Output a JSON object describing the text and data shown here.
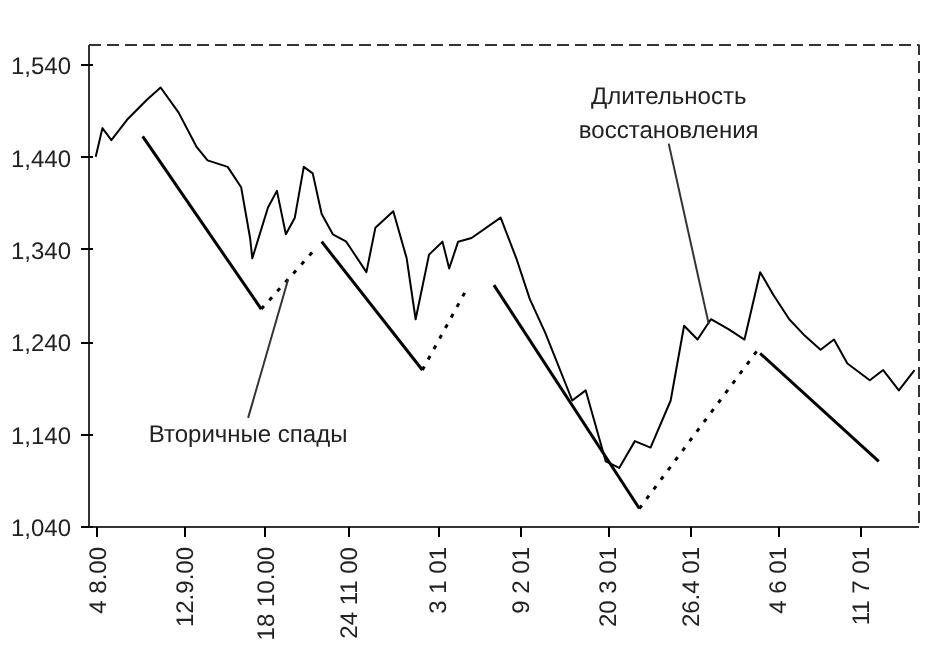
{
  "chart_data": {
    "type": "line",
    "xlim": [
      "2000-07-31",
      "2001-08-06"
    ],
    "ylim": [
      1040,
      1562
    ],
    "xticks": [
      {
        "value": "2000-08-04",
        "label": "4 8.00"
      },
      {
        "value": "2000-09-12",
        "label": "12.9.00"
      },
      {
        "value": "2000-10-18",
        "label": "18 10.00"
      },
      {
        "value": "2000-11-24",
        "label": "24 11 00"
      },
      {
        "value": "2001-01-03",
        "label": "3 1 01"
      },
      {
        "value": "2001-02-09",
        "label": "9 2 01"
      },
      {
        "value": "2001-03-20",
        "label": "20 3 01"
      },
      {
        "value": "2001-04-26",
        "label": "26.4 01"
      },
      {
        "value": "2001-06-04",
        "label": "4 6 01"
      },
      {
        "value": "2001-07-11",
        "label": "11 7 01"
      }
    ],
    "yticks": [
      {
        "value": 1040,
        "label": "1,040"
      },
      {
        "value": 1140,
        "label": "1,140"
      },
      {
        "value": 1240,
        "label": "1,240"
      },
      {
        "value": 1340,
        "label": "1,340"
      },
      {
        "value": 1440,
        "label": "1,440"
      },
      {
        "value": 1540,
        "label": "1,540"
      }
    ],
    "grid": false,
    "series": [
      {
        "color": "#000000",
        "line_style": "solid",
        "x": [
          "2000-08-03",
          "2000-08-06",
          "2000-08-10",
          "2000-08-17",
          "2000-08-26",
          "2000-09-01",
          "2000-09-09",
          "2000-09-17",
          "2000-09-22",
          "2000-10-01",
          "2000-10-07",
          "2000-10-11",
          "2000-10-12",
          "2000-10-19",
          "2000-10-23",
          "2000-10-27",
          "2000-10-31",
          "2000-11-04",
          "2000-11-08",
          "2000-11-12",
          "2000-11-17",
          "2000-11-23",
          "2000-12-02",
          "2000-12-06",
          "2000-12-14",
          "2000-12-20",
          "2000-12-24",
          "2000-12-30",
          "2001-01-05",
          "2001-01-08",
          "2001-01-12",
          "2001-01-18",
          "2001-01-31",
          "2001-02-07",
          "2001-02-13",
          "2001-02-20",
          "2001-03-04",
          "2001-03-10",
          "2001-03-19",
          "2001-03-25",
          "2001-04-01",
          "2001-04-08",
          "2001-04-17",
          "2001-04-23",
          "2001-04-29",
          "2001-05-05",
          "2001-05-13",
          "2001-05-20",
          "2001-05-27",
          "2001-06-02",
          "2001-06-09",
          "2001-06-16",
          "2001-06-23",
          "2001-06-29",
          "2001-07-05",
          "2001-07-15",
          "2001-07-21",
          "2001-07-28",
          "2001-08-04"
        ],
        "values": [
          1441,
          1472,
          1459,
          1481,
          1503,
          1516,
          1489,
          1452,
          1437,
          1430,
          1408,
          1353,
          1331,
          1386,
          1404,
          1357,
          1375,
          1430,
          1423,
          1379,
          1357,
          1349,
          1316,
          1364,
          1382,
          1331,
          1265,
          1335,
          1349,
          1320,
          1349,
          1353,
          1375,
          1331,
          1287,
          1250,
          1177,
          1188,
          1111,
          1104,
          1133,
          1126,
          1177,
          1258,
          1243,
          1265,
          1254,
          1243,
          1316,
          1291,
          1265,
          1247,
          1232,
          1243,
          1217,
          1199,
          1210,
          1188,
          1210
        ]
      },
      {
        "color": "#000000",
        "line_style": "solid",
        "x": [
          "2000-08-24",
          "2000-10-16"
        ],
        "values": [
          1463,
          1276
        ]
      },
      {
        "color": "#000000",
        "line_style": "dotted",
        "x": [
          "2000-10-16",
          "2000-11-08"
        ],
        "values": [
          1276,
          1338
        ]
      },
      {
        "color": "#000000",
        "line_style": "solid",
        "x": [
          "2000-11-12",
          "2000-12-27"
        ],
        "values": [
          1349,
          1210
        ]
      },
      {
        "color": "#000000",
        "line_style": "dotted",
        "x": [
          "2000-12-27",
          "2001-01-15"
        ],
        "values": [
          1210,
          1294
        ]
      },
      {
        "color": "#000000",
        "line_style": "solid",
        "x": [
          "2001-01-28",
          "2001-04-03"
        ],
        "values": [
          1302,
          1060
        ]
      },
      {
        "color": "#000000",
        "line_style": "dotted",
        "x": [
          "2001-04-03",
          "2001-05-26"
        ],
        "values": [
          1060,
          1232
        ]
      },
      {
        "color": "#000000",
        "line_style": "solid",
        "x": [
          "2001-05-27",
          "2001-07-19"
        ],
        "values": [
          1228,
          1111
        ]
      }
    ],
    "annotations": [
      {
        "text": "Вторичные спады",
        "x": "2000-10-28",
        "y": 1308
      },
      {
        "text": "Длительность\nвосстановления",
        "x": "2001-05-04",
        "y": 1260
      }
    ]
  }
}
